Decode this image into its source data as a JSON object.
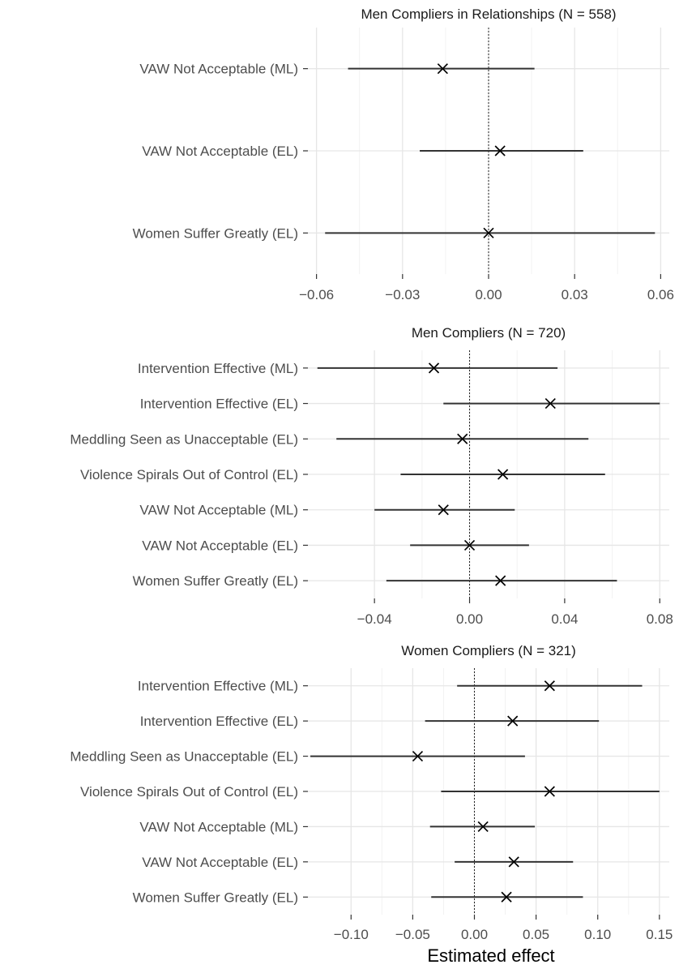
{
  "chart_data": [
    {
      "type": "coefficient-plot",
      "title": "Men Compliers in Relationships (N = 558)",
      "xlabel": "",
      "xlim": [
        -0.063,
        0.063
      ],
      "xticks": [
        -0.06,
        -0.03,
        0.0,
        0.03,
        0.06
      ],
      "xtick_labels": [
        "−0.06",
        "−0.03",
        "0.00",
        "0.03",
        "0.06"
      ],
      "reference_line": 0,
      "grid": true,
      "rows": [
        {
          "label": "VAW Not Acceptable (ML)",
          "estimate": -0.016,
          "low": -0.049,
          "high": 0.016
        },
        {
          "label": "VAW Not Acceptable (EL)",
          "estimate": 0.004,
          "low": -0.024,
          "high": 0.033
        },
        {
          "label": "Women Suffer Greatly (EL)",
          "estimate": 0.0,
          "low": -0.057,
          "high": 0.058
        }
      ]
    },
    {
      "type": "coefficient-plot",
      "title": "Men Compliers (N = 720)",
      "xlabel": "",
      "xlim": [
        -0.068,
        0.084
      ],
      "xticks": [
        -0.04,
        0.0,
        0.04,
        0.08
      ],
      "xtick_labels": [
        "−0.04",
        "0.00",
        "0.04",
        "0.08"
      ],
      "reference_line": 0,
      "grid": true,
      "rows": [
        {
          "label": "Intervention Effective (ML)",
          "estimate": -0.015,
          "low": -0.064,
          "high": 0.037
        },
        {
          "label": "Intervention Effective (EL)",
          "estimate": 0.034,
          "low": -0.011,
          "high": 0.08
        },
        {
          "label": "Meddling Seen as Unacceptable (EL)",
          "estimate": -0.003,
          "low": -0.056,
          "high": 0.05
        },
        {
          "label": "Violence Spirals Out of Control (EL)",
          "estimate": 0.014,
          "low": -0.029,
          "high": 0.057
        },
        {
          "label": "VAW Not Acceptable (ML)",
          "estimate": -0.011,
          "low": -0.04,
          "high": 0.019
        },
        {
          "label": "VAW Not Acceptable (EL)",
          "estimate": 0.0,
          "low": -0.025,
          "high": 0.025
        },
        {
          "label": "Women Suffer Greatly (EL)",
          "estimate": 0.013,
          "low": -0.035,
          "high": 0.062
        }
      ]
    },
    {
      "type": "coefficient-plot",
      "title": "Women Compliers (N = 321)",
      "xlabel": "Estimated effect",
      "xlim": [
        -0.135,
        0.158
      ],
      "xticks": [
        -0.1,
        -0.05,
        0.0,
        0.05,
        0.1,
        0.15
      ],
      "xtick_labels": [
        "−0.10",
        "−0.05",
        "0.00",
        "0.05",
        "0.10",
        "0.15"
      ],
      "reference_line": 0,
      "grid": true,
      "rows": [
        {
          "label": "Intervention Effective (ML)",
          "estimate": 0.061,
          "low": -0.014,
          "high": 0.136
        },
        {
          "label": "Intervention Effective (EL)",
          "estimate": 0.031,
          "low": -0.04,
          "high": 0.101
        },
        {
          "label": "Meddling Seen as Unacceptable (EL)",
          "estimate": -0.046,
          "low": -0.133,
          "high": 0.041
        },
        {
          "label": "Violence Spirals Out of Control (EL)",
          "estimate": 0.061,
          "low": -0.027,
          "high": 0.15
        },
        {
          "label": "VAW Not Acceptable (ML)",
          "estimate": 0.007,
          "low": -0.036,
          "high": 0.049
        },
        {
          "label": "VAW Not Acceptable (EL)",
          "estimate": 0.032,
          "low": -0.016,
          "high": 0.08
        },
        {
          "label": "Women Suffer Greatly (EL)",
          "estimate": 0.026,
          "low": -0.035,
          "high": 0.088
        }
      ]
    }
  ]
}
